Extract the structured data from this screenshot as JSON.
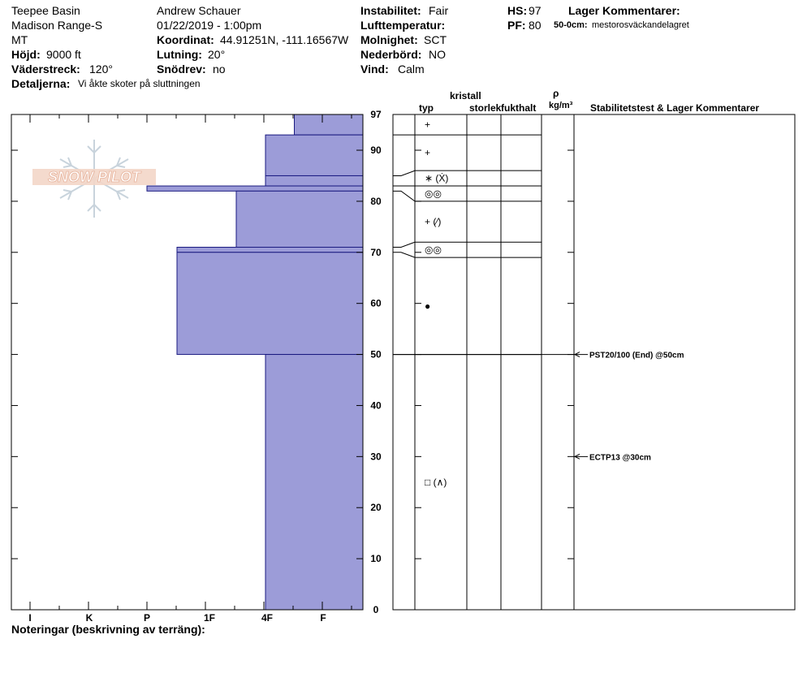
{
  "header": {
    "col1": [
      "Teepee Basin",
      "Madison Range-S",
      "MT"
    ],
    "hojd_label": "Höjd:",
    "hojd_value": "9000 ft",
    "vaderstreck_label": "Väderstreck:",
    "vaderstreck_value": "120°",
    "detaljer_label": "Detaljerna:",
    "detaljer_value": "Vi åkte skoter på sluttningen",
    "observer": "Andrew Schauer",
    "datetime": "01/22/2019 - 1:00pm",
    "koordinat_label": "Koordinat:",
    "koordinat_value": "44.91251N, -111.16567W",
    "lutning_label": "Lutning:",
    "lutning_value": "20°",
    "snodrev_label": "Snödrev:",
    "snodrev_value": "no",
    "instabilitet_label": "Instabilitet:",
    "instabilitet_value": "Fair",
    "lufttemp_label": "Lufttemperatur:",
    "molnighet_label": "Molnighet:",
    "molnighet_value": "SCT",
    "nederbord_label": "Nederbörd:",
    "nederbord_value": "NO",
    "vind_label": "Vind:",
    "vind_value": "Calm",
    "hs_label": "HS:",
    "hs_value": "97",
    "pf_label": "PF:",
    "pf_value": "80",
    "lager_label": "Lager Kommentarer:",
    "lager_range": "50-0cm:",
    "lager_text": "mestorosväckandelagret"
  },
  "logo_text": "SNOW PILOT",
  "columns": {
    "kristall": "kristall",
    "typ": "typ",
    "storlek": "storlek",
    "fukthalt": "fukthalt",
    "rho": "ρ",
    "density_unit": "kg/m³",
    "stability": "Stabilitetstest & Lager Kommentarer"
  },
  "footer": "Noteringar (beskrivning av terräng):",
  "chart_data": {
    "type": "snow-profile",
    "hs": 97,
    "y_axis_ticks": [
      "0",
      "10",
      "20",
      "30",
      "40",
      "50",
      "60",
      "70",
      "80",
      "90",
      "97"
    ],
    "hardness_labels": [
      "I",
      "K",
      "P",
      "1F",
      "4F",
      "F"
    ],
    "hardness_scale": [
      "F",
      "4F",
      "1F",
      "P",
      "K",
      "I"
    ],
    "layers": [
      {
        "top": 97,
        "bottom": 93,
        "hardness": 0.5
      },
      {
        "top": 93,
        "bottom": 85,
        "hardness": 1
      },
      {
        "top": 85,
        "bottom": 83,
        "hardness": 1
      },
      {
        "top": 83,
        "bottom": 82,
        "hardness": 3
      },
      {
        "top": 82,
        "bottom": 71,
        "hardness": 1.5
      },
      {
        "top": 71,
        "bottom": 70,
        "hardness": 2.5
      },
      {
        "top": 70,
        "bottom": 50,
        "hardness": 2.5
      },
      {
        "top": 50,
        "bottom": 0,
        "hardness": 1
      }
    ],
    "grain_rows": [
      {
        "top": 97,
        "bottom": 93,
        "symbol": "+"
      },
      {
        "top": 93,
        "bottom": 86,
        "symbol": "+"
      },
      {
        "top": 86,
        "bottom": 83,
        "symbol": "∗ (Ẋ)"
      },
      {
        "top": 83,
        "bottom": 80,
        "symbol": "◎◎"
      },
      {
        "top": 80,
        "bottom": 72,
        "symbol": "+ (⁄)"
      },
      {
        "top": 72,
        "bottom": 69,
        "symbol": "◎◎"
      },
      {
        "top": 69,
        "bottom": 50,
        "symbol": "●"
      },
      {
        "top": 50,
        "bottom": 0,
        "symbol": "□ (∧)"
      }
    ],
    "tests": [
      {
        "depth": 50,
        "label": "PST20/100 (End) @50cm"
      },
      {
        "depth": 30,
        "label": "ECTP13 @30cm"
      }
    ]
  }
}
